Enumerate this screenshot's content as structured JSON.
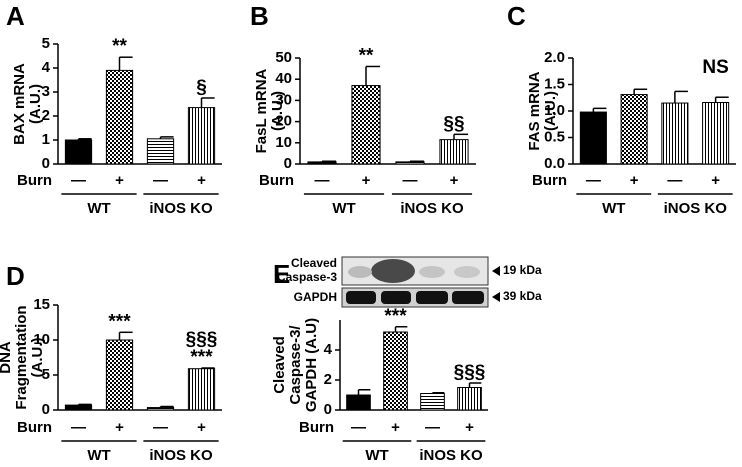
{
  "chart_data": [
    {
      "type": "bar",
      "panel": "A",
      "ylabel": [
        "BAX mRNA",
        "(A.U.)"
      ],
      "x_row_label": "Burn",
      "categories": [
        "—",
        "+",
        "—",
        "+"
      ],
      "groups": [
        "WT",
        "iNOS KO"
      ],
      "values": [
        1.0,
        3.9,
        1.05,
        2.35
      ],
      "errors": [
        0.05,
        0.55,
        0.08,
        0.4
      ],
      "fills": [
        "solid",
        "checker",
        "hlines",
        "vlines"
      ],
      "annotations": [
        null,
        [
          "**"
        ],
        null,
        [
          "§"
        ]
      ],
      "ylim": [
        0,
        5
      ],
      "yticks": [
        0,
        1,
        2,
        3,
        4,
        5
      ]
    },
    {
      "type": "bar",
      "panel": "B",
      "ylabel": [
        "FasL mRNA",
        "(A.U.)"
      ],
      "x_row_label": "Burn",
      "categories": [
        "—",
        "+",
        "—",
        "+"
      ],
      "groups": [
        "WT",
        "iNOS KO"
      ],
      "values": [
        1,
        37,
        1,
        11.5
      ],
      "errors": [
        0.3,
        9,
        0.3,
        2.5
      ],
      "fills": [
        "solid",
        "checker",
        "hlines",
        "vlines"
      ],
      "annotations": [
        null,
        [
          "**"
        ],
        null,
        [
          "§§"
        ]
      ],
      "ylim": [
        0,
        50
      ],
      "yticks": [
        0,
        10,
        20,
        30,
        40,
        50
      ]
    },
    {
      "type": "bar",
      "panel": "C",
      "ylabel": [
        "FAS mRNA",
        "(A.U.)"
      ],
      "x_row_label": "Burn",
      "categories": [
        "—",
        "+",
        "—",
        "+"
      ],
      "groups": [
        "WT",
        "iNOS KO"
      ],
      "values": [
        0.98,
        1.31,
        1.15,
        1.16
      ],
      "errors": [
        0.07,
        0.1,
        0.22,
        0.1
      ],
      "fills": [
        "solid",
        "checker",
        "vlines",
        "vlines"
      ],
      "annotations": [
        null,
        null,
        null,
        null
      ],
      "note": "NS",
      "ylim": [
        0,
        2
      ],
      "yticks": [
        {
          "value": 0,
          "label": "0.0"
        },
        0.5,
        {
          "value": 1,
          "label": "1.0"
        },
        1.5,
        {
          "value": 2,
          "label": "2.0"
        }
      ]
    },
    {
      "type": "bar",
      "panel": "D",
      "ylabel": [
        "DNA",
        "Fragmentation",
        "(A.U.)"
      ],
      "x_row_label": "Burn",
      "categories": [
        "—",
        "+",
        "—",
        "+"
      ],
      "groups": [
        "WT",
        "iNOS KO"
      ],
      "values": [
        0.7,
        10,
        0.35,
        5.9
      ],
      "errors": [
        0.1,
        1.1,
        0.15,
        0.1
      ],
      "fills": [
        "solid",
        "checker",
        "hlines",
        "vlines"
      ],
      "annotations": [
        null,
        [
          "***"
        ],
        null,
        [
          "§§§",
          "***"
        ]
      ],
      "ylim": [
        0,
        15
      ],
      "yticks": [
        0,
        5,
        10,
        15
      ]
    },
    {
      "type": "bar",
      "panel": "E",
      "ylabel": [
        "Cleaved",
        "Caspase-3/",
        "GAPDH (A.U)"
      ],
      "x_row_label": "Burn",
      "categories": [
        "—",
        "+",
        "—",
        "+"
      ],
      "groups": [
        "WT",
        "iNOS KO"
      ],
      "values": [
        1.0,
        5.2,
        1.1,
        1.5
      ],
      "errors": [
        0.35,
        0.35,
        0.05,
        0.3
      ],
      "fills": [
        "solid",
        "checker",
        "hlines",
        "vlines"
      ],
      "annotations": [
        null,
        [
          "***"
        ],
        null,
        [
          "§§§"
        ]
      ],
      "ylim": [
        0,
        6
      ],
      "yticks": [
        0,
        2,
        4
      ],
      "blot": [
        {
          "label": [
            "Cleaved",
            "Caspase-3"
          ],
          "size": "19 kDa"
        },
        {
          "label": [
            "GAPDH"
          ],
          "size": "39 kDa"
        }
      ]
    }
  ]
}
